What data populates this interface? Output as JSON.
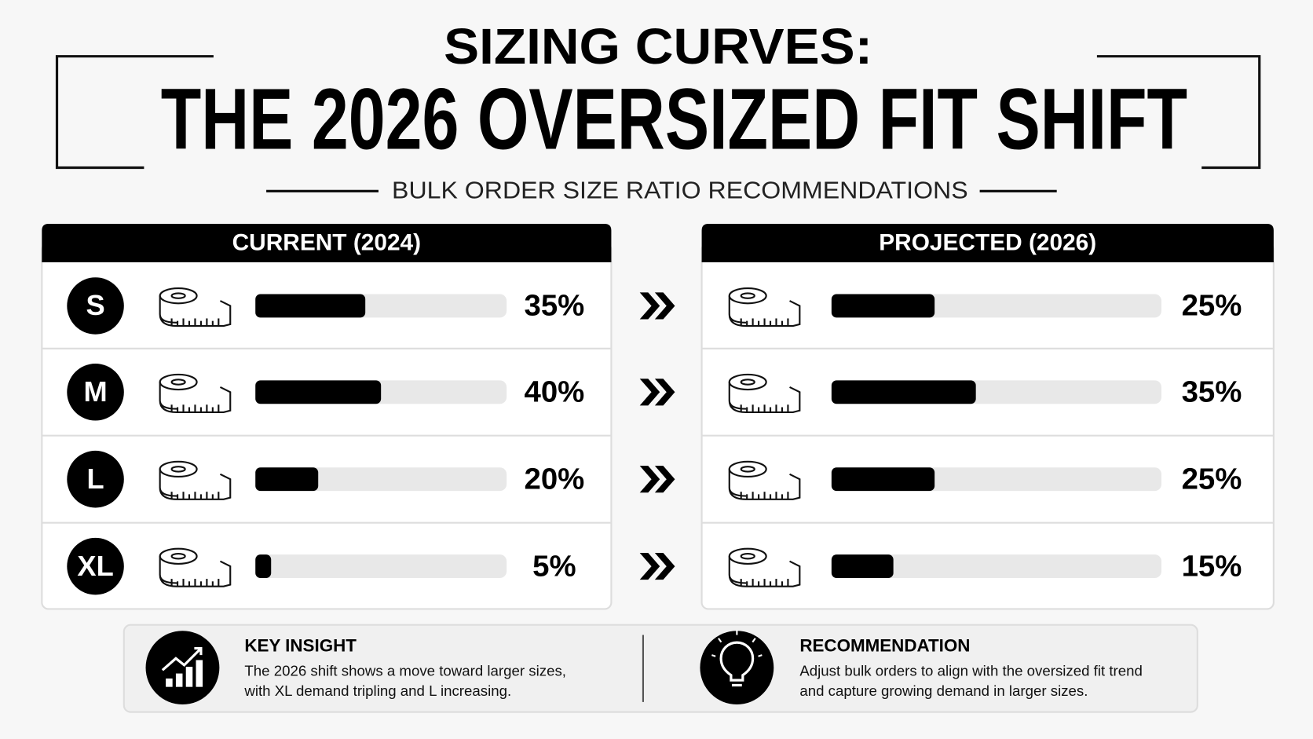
{
  "header": {
    "title_line1": "SIZING CURVES:",
    "title_line2": "THE 2026 OVERSIZED FIT SHIFT",
    "subtitle": "BULK ORDER SIZE RATIO RECOMMENDATIONS"
  },
  "chart_data": [
    {
      "type": "bar",
      "title": "CURRENT (2024)",
      "categories": [
        "S",
        "M",
        "L",
        "XL"
      ],
      "values": [
        35,
        40,
        20,
        5
      ],
      "value_labels": [
        "35%",
        "40%",
        "20%",
        "5%"
      ],
      "xlim": [
        0,
        80
      ],
      "color": "#000000"
    },
    {
      "type": "bar",
      "title": "PROJECTED (2026)",
      "values": [
        25,
        35,
        25,
        15
      ],
      "value_labels": [
        "25%",
        "35%",
        "25%",
        "15%"
      ],
      "xlim": [
        0,
        80
      ],
      "color": "#000000"
    }
  ],
  "notes": [
    {
      "title": "KEY INSIGHT",
      "text": [
        "The 2026 shift shows a move toward larger sizes,",
        "with XL demand tripling and L increasing."
      ]
    },
    {
      "title": "RECOMMENDATION",
      "text": [
        "Adjust bulk orders to align with the oversized fit trend",
        "and capture growing demand in larger sizes."
      ]
    }
  ]
}
